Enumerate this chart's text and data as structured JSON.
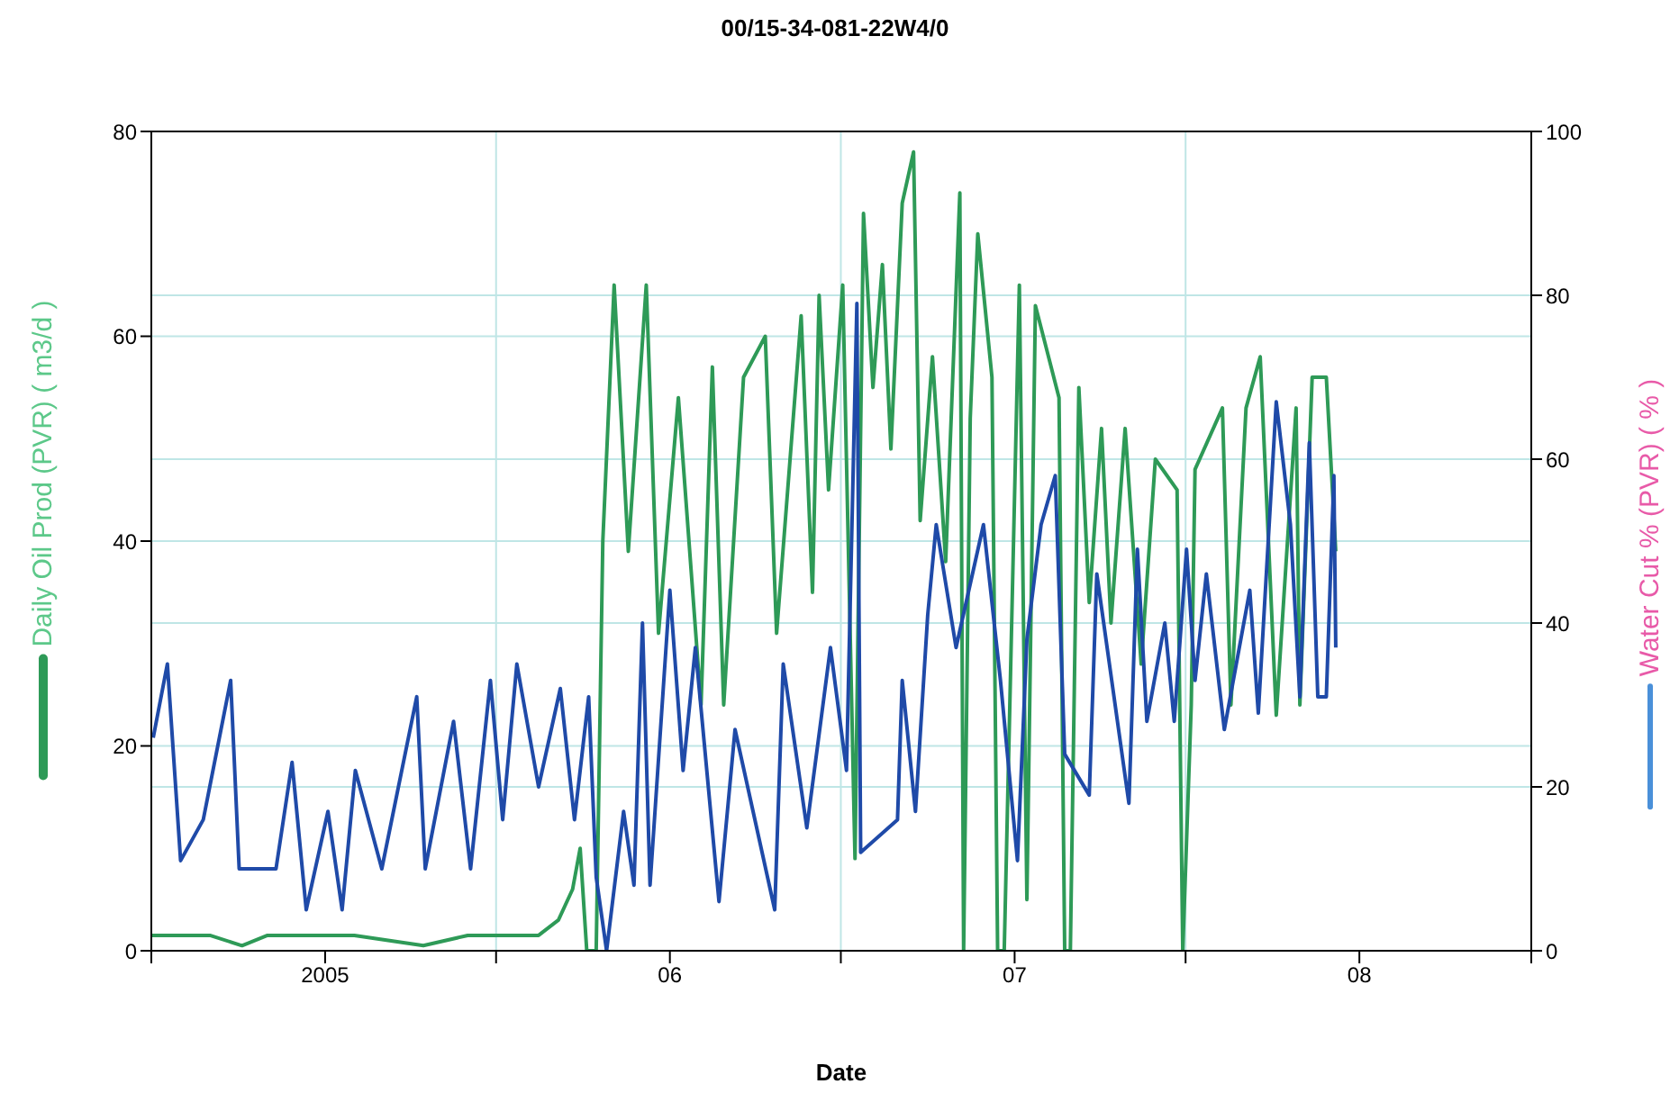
{
  "chart_data": {
    "type": "line",
    "title": "00/15-34-081-22W4/0",
    "xlabel": "Date",
    "ylabel": "Daily Oil Prod (PVR) ( m3/d )",
    "y2label": "Water Cut  % (PVR) ( % )",
    "xlim": [
      "2004-07-01",
      "2008-07-01"
    ],
    "xticks": [
      {
        "value": "2004-07-01",
        "label": null
      },
      {
        "value": "2005-01-01",
        "label": "2005"
      },
      {
        "value": "2005-07-01",
        "label": null
      },
      {
        "value": "2006-01-01",
        "label": "06"
      },
      {
        "value": "2006-07-01",
        "label": null
      },
      {
        "value": "2007-01-01",
        "label": "07"
      },
      {
        "value": "2007-07-01",
        "label": null
      },
      {
        "value": "2008-01-01",
        "label": "08"
      },
      {
        "value": "2008-07-01",
        "label": null
      }
    ],
    "ylim": [
      0,
      80
    ],
    "yticks": [
      0,
      20,
      40,
      60,
      80
    ],
    "y2lim": [
      0,
      100
    ],
    "y2ticks": [
      0,
      20,
      40,
      60,
      80,
      100
    ],
    "grid": true,
    "series": [
      {
        "color": "#2e9a57",
        "x": [
          "2004-07-01",
          "2004-09-01",
          "2004-10-05",
          "2004-11-01",
          "2005-02-01",
          "2005-04-15",
          "2005-06-01",
          "2005-08-15",
          "2005-09-05",
          "2005-09-20",
          "2005-09-28",
          "2005-10-05",
          "2005-10-15",
          "2005-10-22",
          "2005-11-03",
          "2005-11-18",
          "2005-12-07",
          "2005-12-20",
          "2006-01-10",
          "2006-02-03",
          "2006-02-15",
          "2006-02-27",
          "2006-03-20",
          "2006-04-12",
          "2006-04-24",
          "2006-05-20",
          "2006-06-01",
          "2006-06-08",
          "2006-06-18",
          "2006-07-03",
          "2006-07-16",
          "2006-07-25",
          "2006-08-04",
          "2006-08-14",
          "2006-08-23",
          "2006-09-04",
          "2006-09-16",
          "2006-09-23",
          "2006-10-06",
          "2006-10-20",
          "2006-11-04",
          "2006-11-08",
          "2006-11-15",
          "2006-11-23",
          "2006-12-08",
          "2006-12-14",
          "2006-12-21",
          "2007-01-06",
          "2007-01-14",
          "2007-01-23",
          "2007-02-17",
          "2007-02-23",
          "2007-03-01",
          "2007-03-10",
          "2007-03-21",
          "2007-04-03",
          "2007-04-13",
          "2007-04-28",
          "2007-05-15",
          "2007-05-30",
          "2007-06-22",
          "2007-06-28",
          "2007-07-07",
          "2007-07-11",
          "2007-08-09",
          "2007-08-18",
          "2007-09-03",
          "2007-09-18",
          "2007-10-05",
          "2007-10-26",
          "2007-10-30",
          "2007-11-12",
          "2007-11-27",
          "2007-12-07"
        ],
        "values": [
          1.5,
          1.5,
          0.5,
          1.5,
          1.5,
          0.5,
          1.5,
          1.5,
          3,
          6,
          10,
          0,
          0,
          40,
          65,
          39,
          65,
          31,
          54,
          24,
          57,
          24,
          56,
          60,
          31,
          62,
          35,
          64,
          45,
          65,
          9,
          72,
          55,
          67,
          49,
          73,
          78,
          42,
          58,
          38,
          74,
          0,
          52,
          70,
          56,
          0,
          0,
          65,
          5,
          63,
          54,
          0,
          0,
          55,
          34,
          51,
          32,
          51,
          28,
          48,
          45,
          0,
          24,
          47,
          53,
          24,
          53,
          58,
          23,
          53,
          24,
          56,
          56,
          39
        ]
      },
      {
        "color": "#1f4aa8",
        "axis": "y2",
        "x": [
          "2004-07-03",
          "2004-07-18",
          "2004-08-01",
          "2004-08-25",
          "2004-09-23",
          "2004-10-02",
          "2004-11-10",
          "2004-11-27",
          "2004-12-12",
          "2005-01-04",
          "2005-01-19",
          "2005-02-02",
          "2005-03-02",
          "2005-04-08",
          "2005-04-17",
          "2005-05-17",
          "2005-06-04",
          "2005-06-25",
          "2005-07-08",
          "2005-07-23",
          "2005-08-15",
          "2005-09-07",
          "2005-09-22",
          "2005-10-07",
          "2005-10-15",
          "2005-10-26",
          "2005-11-13",
          "2005-11-24",
          "2005-12-03",
          "2005-12-11",
          "2006-01-01",
          "2006-01-15",
          "2006-01-28",
          "2006-02-22",
          "2006-03-11",
          "2006-04-22",
          "2006-05-01",
          "2006-05-26",
          "2006-06-20",
          "2006-07-07",
          "2006-07-18",
          "2006-07-22",
          "2006-08-30",
          "2006-09-04",
          "2006-09-18",
          "2006-10-01",
          "2006-10-10",
          "2006-10-31",
          "2006-11-29",
          "2006-12-17",
          "2007-01-04",
          "2007-01-14",
          "2007-01-29",
          "2007-02-13",
          "2007-02-23",
          "2007-03-21",
          "2007-03-29",
          "2007-05-02",
          "2007-05-11",
          "2007-05-21",
          "2007-06-09",
          "2007-06-19",
          "2007-07-02",
          "2007-07-11",
          "2007-07-23",
          "2007-08-11",
          "2007-09-07",
          "2007-09-16",
          "2007-10-05",
          "2007-10-20",
          "2007-10-30",
          "2007-11-09",
          "2007-11-18",
          "2007-11-27",
          "2007-12-05",
          "2007-12-07"
        ],
        "values": [
          26,
          35,
          11,
          16,
          33,
          10,
          10,
          23,
          5,
          17,
          5,
          22,
          10,
          31,
          10,
          28,
          10,
          33,
          16,
          35,
          20,
          32,
          16,
          31,
          9,
          0,
          17,
          8,
          40,
          8,
          44,
          22,
          37,
          6,
          27,
          5,
          35,
          15,
          37,
          22,
          79,
          12,
          16,
          33,
          17,
          41,
          52,
          37,
          52,
          33,
          11,
          38,
          52,
          58,
          24,
          19,
          46,
          18,
          49,
          28,
          40,
          28,
          49,
          33,
          46,
          27,
          44,
          29,
          67,
          52,
          31,
          62,
          31,
          31,
          58,
          37
        ]
      }
    ]
  }
}
